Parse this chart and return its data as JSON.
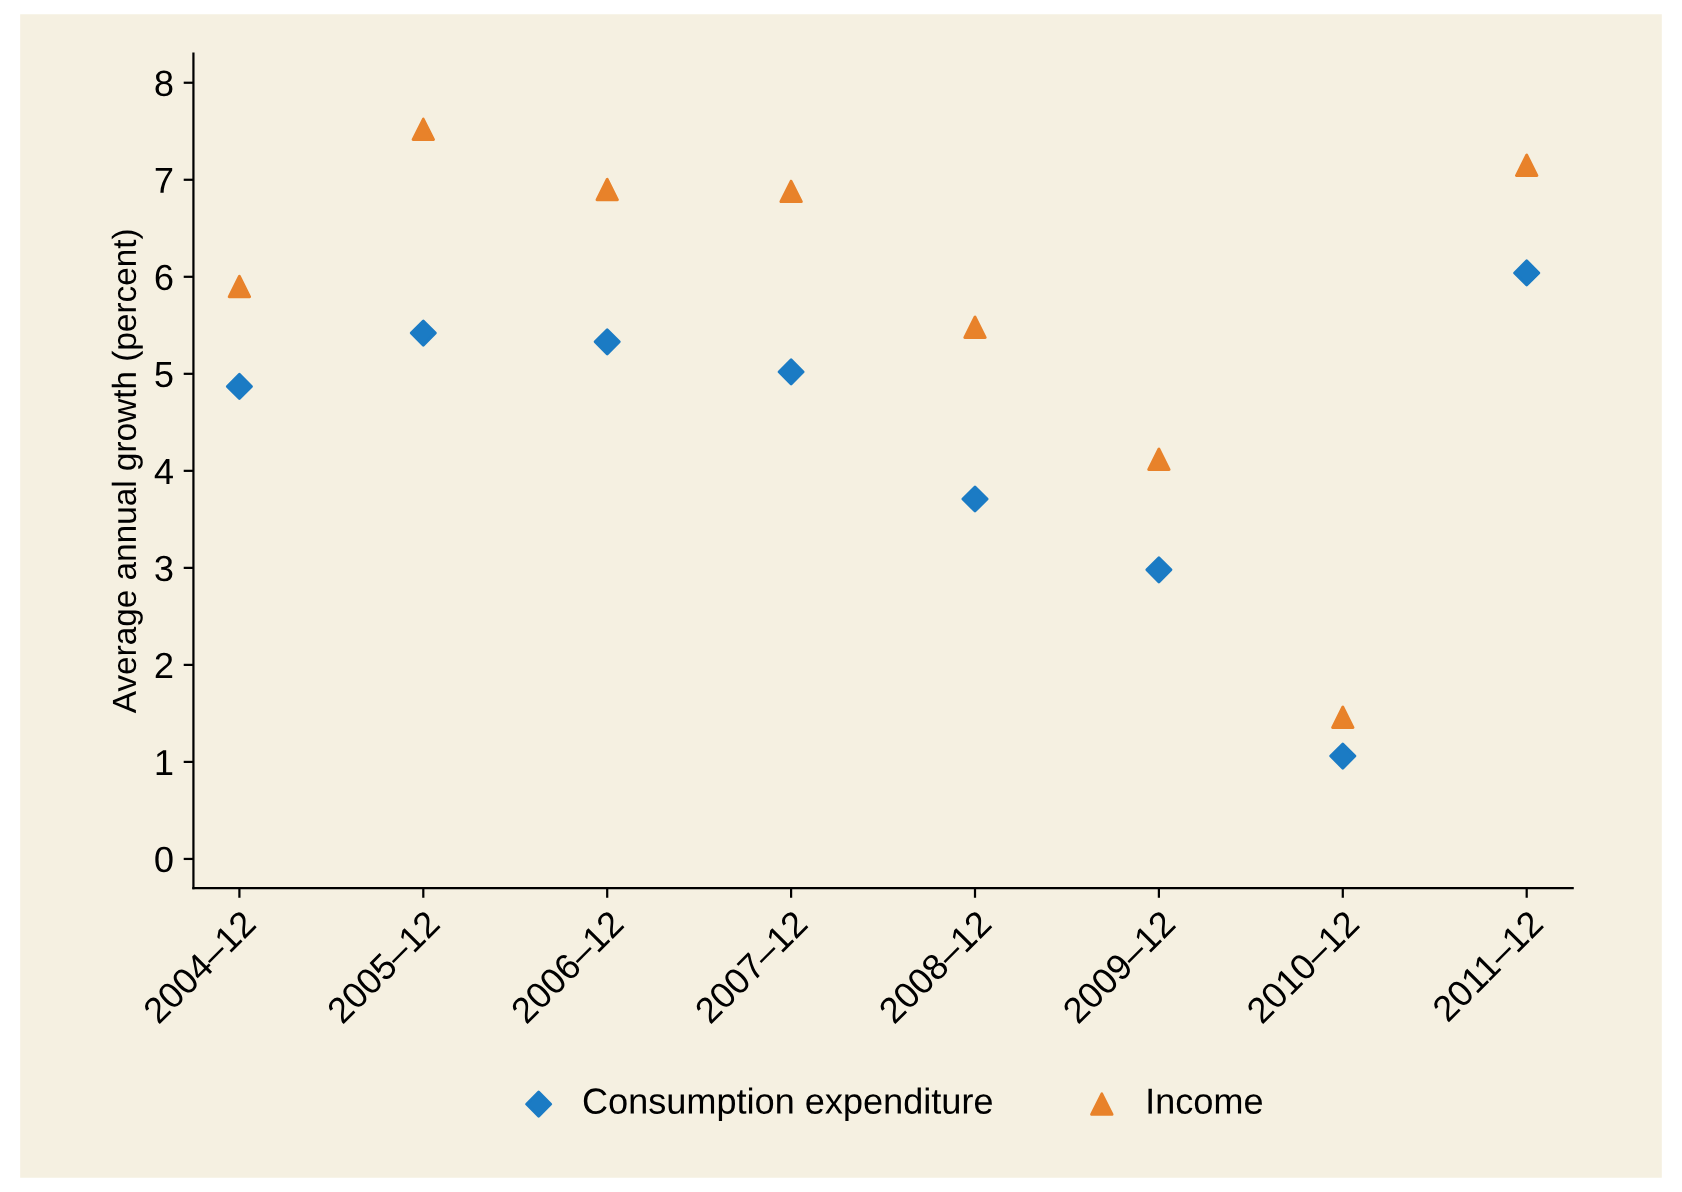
{
  "chart_data": {
    "type": "scatter",
    "ylabel": "Average annual growth (percent)",
    "categories": [
      "2004–12",
      "2005–12",
      "2006–12",
      "2007–12",
      "2008–12",
      "2009–12",
      "2010–12",
      "2011–12"
    ],
    "series": [
      {
        "name": "Consumption expenditure",
        "color": "#1b7bc4",
        "marker": "diamond",
        "values": [
          4.87,
          5.42,
          5.33,
          5.02,
          3.71,
          2.98,
          1.06,
          6.04
        ]
      },
      {
        "name": "Income",
        "color": "#e8822a",
        "marker": "triangle",
        "values": [
          5.9,
          7.52,
          6.9,
          6.88,
          5.48,
          4.12,
          1.46,
          7.15
        ]
      }
    ],
    "ylim": [
      -0.3,
      8.3
    ],
    "yticks": [
      0,
      1,
      2,
      3,
      4,
      5,
      6,
      7,
      8
    ],
    "grid": false,
    "legend": "bottom"
  }
}
